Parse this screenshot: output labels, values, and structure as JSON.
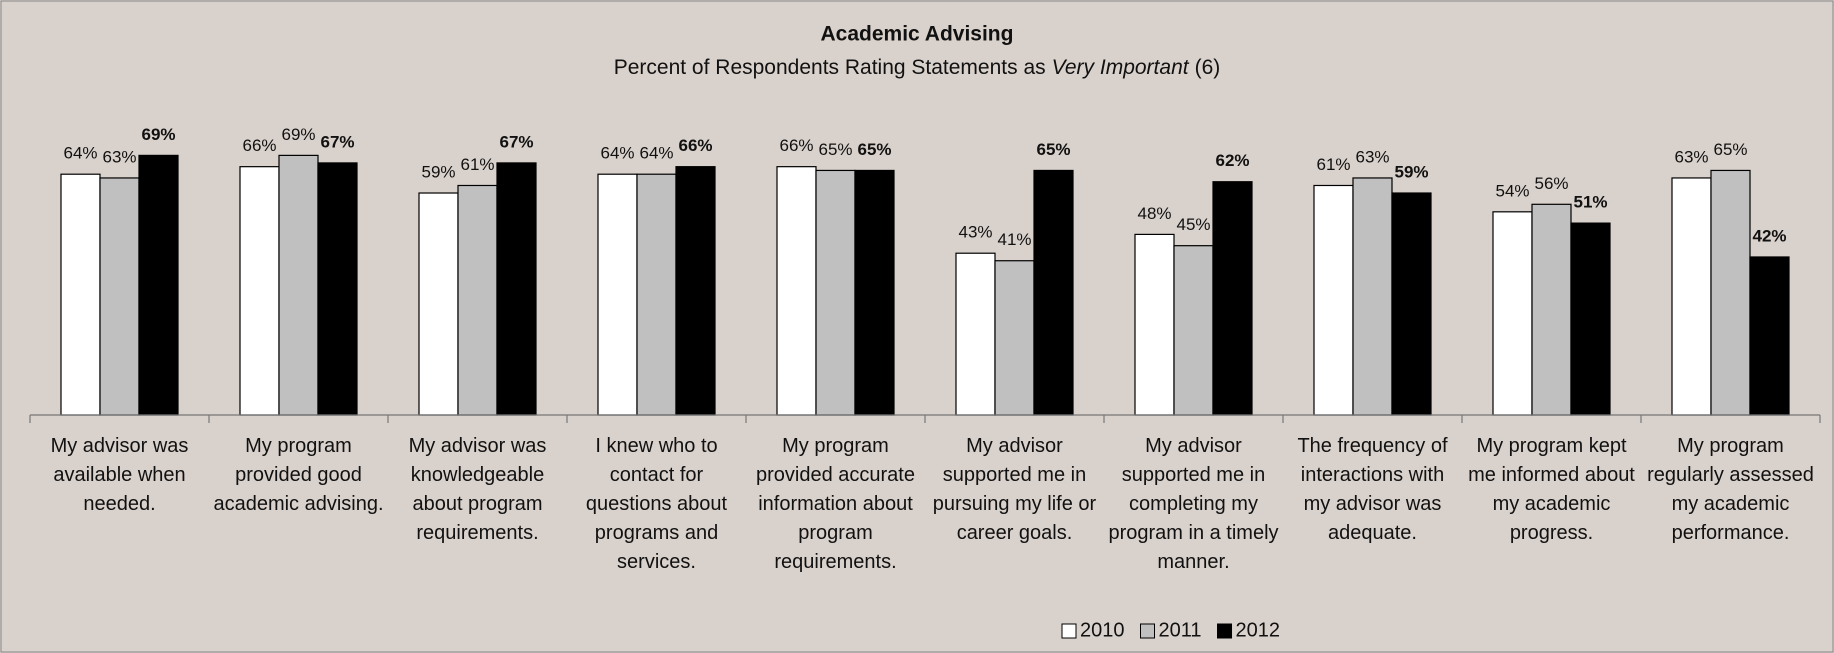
{
  "chart_data": {
    "type": "bar",
    "title": "Academic Advising",
    "subtitle": [
      "Percent of Respondents Rating Statements as",
      "Very Important",
      "(6)"
    ],
    "categories": [
      "My advisor was available when needed.",
      "My program provided good academic advising.",
      "My advisor was knowledgeable about program requirements.",
      "I knew who to contact for questions about programs and services.",
      "My program provided accurate information about program requirements.",
      "My advisor supported me in pursuing my life or career goals.",
      "My advisor supported me in completing my program in a timely manner.",
      "The frequency of interactions with my advisor was adequate.",
      "My program kept me informed about my academic progress.",
      "My program regularly assessed my academic performance."
    ],
    "series": [
      {
        "name": "2010",
        "color": "#ffffff",
        "values": [
          64,
          66,
          59,
          64,
          66,
          43,
          48,
          61,
          54,
          63
        ],
        "value_labels": [
          "64%",
          "66%",
          "59%",
          "64%",
          "66%",
          "43%",
          "48%",
          "61%",
          "54%",
          "63%"
        ]
      },
      {
        "name": "2011",
        "color": "#c0c0c0",
        "values": [
          63,
          69,
          61,
          64,
          65,
          41,
          45,
          63,
          56,
          65
        ],
        "value_labels": [
          "63%",
          "69%",
          "61%",
          "64%",
          "65%",
          "41%",
          "45%",
          "63%",
          "56%",
          "65%"
        ]
      },
      {
        "name": "2012",
        "color": "#000000",
        "values": [
          69,
          67,
          67,
          66,
          65,
          65,
          62,
          59,
          51,
          42
        ],
        "value_labels": [
          "69%",
          "67%",
          "67%",
          "66%",
          "65%",
          "65%",
          "62%",
          "59%",
          "51%",
          "42%"
        ]
      }
    ],
    "ylim": [
      0,
      80
    ],
    "legend": "bottom"
  }
}
